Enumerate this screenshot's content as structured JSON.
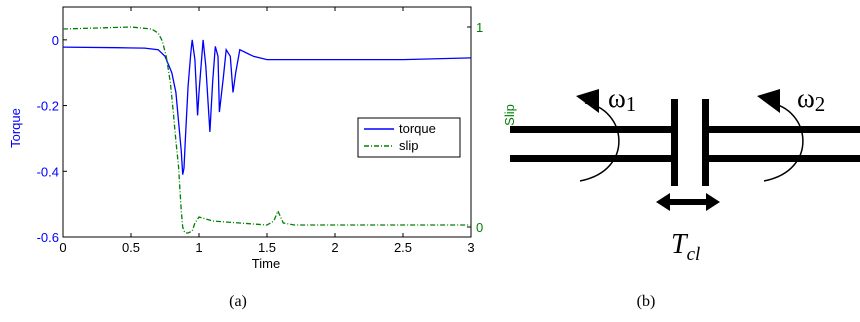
{
  "figure": {
    "caption_a": "(a)",
    "caption_b": "(b)"
  },
  "chart_data": {
    "type": "line",
    "xlabel": "Time",
    "ylabel_left": "Torque",
    "ylabel_right": "Slip",
    "xlim": [
      0,
      3
    ],
    "ylim_left": [
      -0.6,
      0.1
    ],
    "ylim_right": [
      -0.05,
      1.1
    ],
    "x_ticks": [
      "0",
      "0.5",
      "1",
      "1.5",
      "2",
      "2.5",
      "3"
    ],
    "y_ticks_left": [
      "0",
      "-0.2",
      "-0.4",
      "-0.6"
    ],
    "y_ticks_right": [
      "1",
      "0"
    ],
    "grid": false,
    "legend_position": "center-right",
    "series": [
      {
        "name": "torque",
        "axis": "left",
        "color": "#0000ff",
        "style": "solid",
        "x": [
          0,
          0.4,
          0.6,
          0.7,
          0.75,
          0.8,
          0.83,
          0.85,
          0.87,
          0.88,
          0.89,
          0.9,
          0.92,
          0.94,
          0.95,
          0.97,
          0.99,
          1.0,
          1.03,
          1.05,
          1.08,
          1.1,
          1.12,
          1.14,
          1.15,
          1.18,
          1.2,
          1.23,
          1.25,
          1.27,
          1.3,
          1.35,
          1.4,
          1.5,
          1.7,
          2.0,
          2.5,
          3.0
        ],
        "y": [
          -0.022,
          -0.024,
          -0.025,
          -0.03,
          -0.05,
          -0.1,
          -0.16,
          -0.25,
          -0.34,
          -0.41,
          -0.39,
          -0.3,
          -0.14,
          -0.04,
          0.0,
          -0.06,
          -0.23,
          -0.16,
          0.0,
          -0.08,
          -0.28,
          -0.13,
          -0.02,
          -0.05,
          -0.22,
          -0.11,
          -0.03,
          -0.05,
          -0.16,
          -0.1,
          -0.03,
          -0.04,
          -0.05,
          -0.06,
          -0.06,
          -0.06,
          -0.06,
          -0.055
        ]
      },
      {
        "name": "slip",
        "axis": "right",
        "color": "#008000",
        "style": "dash-dot",
        "x": [
          0,
          0.5,
          0.65,
          0.7,
          0.73,
          0.76,
          0.79,
          0.81,
          0.83,
          0.85,
          0.86,
          0.87,
          0.88,
          0.89,
          0.9,
          0.92,
          0.95,
          0.97,
          1.0,
          1.1,
          1.3,
          1.5,
          1.55,
          1.58,
          1.6,
          1.62,
          1.7,
          2.0,
          2.5,
          3.0
        ],
        "y": [
          0.99,
          1.0,
          0.99,
          0.97,
          0.93,
          0.85,
          0.72,
          0.58,
          0.43,
          0.3,
          0.18,
          0.08,
          0.0,
          -0.02,
          -0.03,
          -0.03,
          -0.02,
          0.02,
          0.05,
          0.03,
          0.02,
          0.01,
          0.03,
          0.08,
          0.05,
          0.02,
          0.01,
          0.01,
          0.01,
          0.01
        ]
      }
    ]
  },
  "diagram": {
    "omega1_base": "ω",
    "omega1_sub": "1",
    "omega2_base": "ω",
    "omega2_sub": "2",
    "clutch_base": "T",
    "clutch_sub": "cl"
  }
}
